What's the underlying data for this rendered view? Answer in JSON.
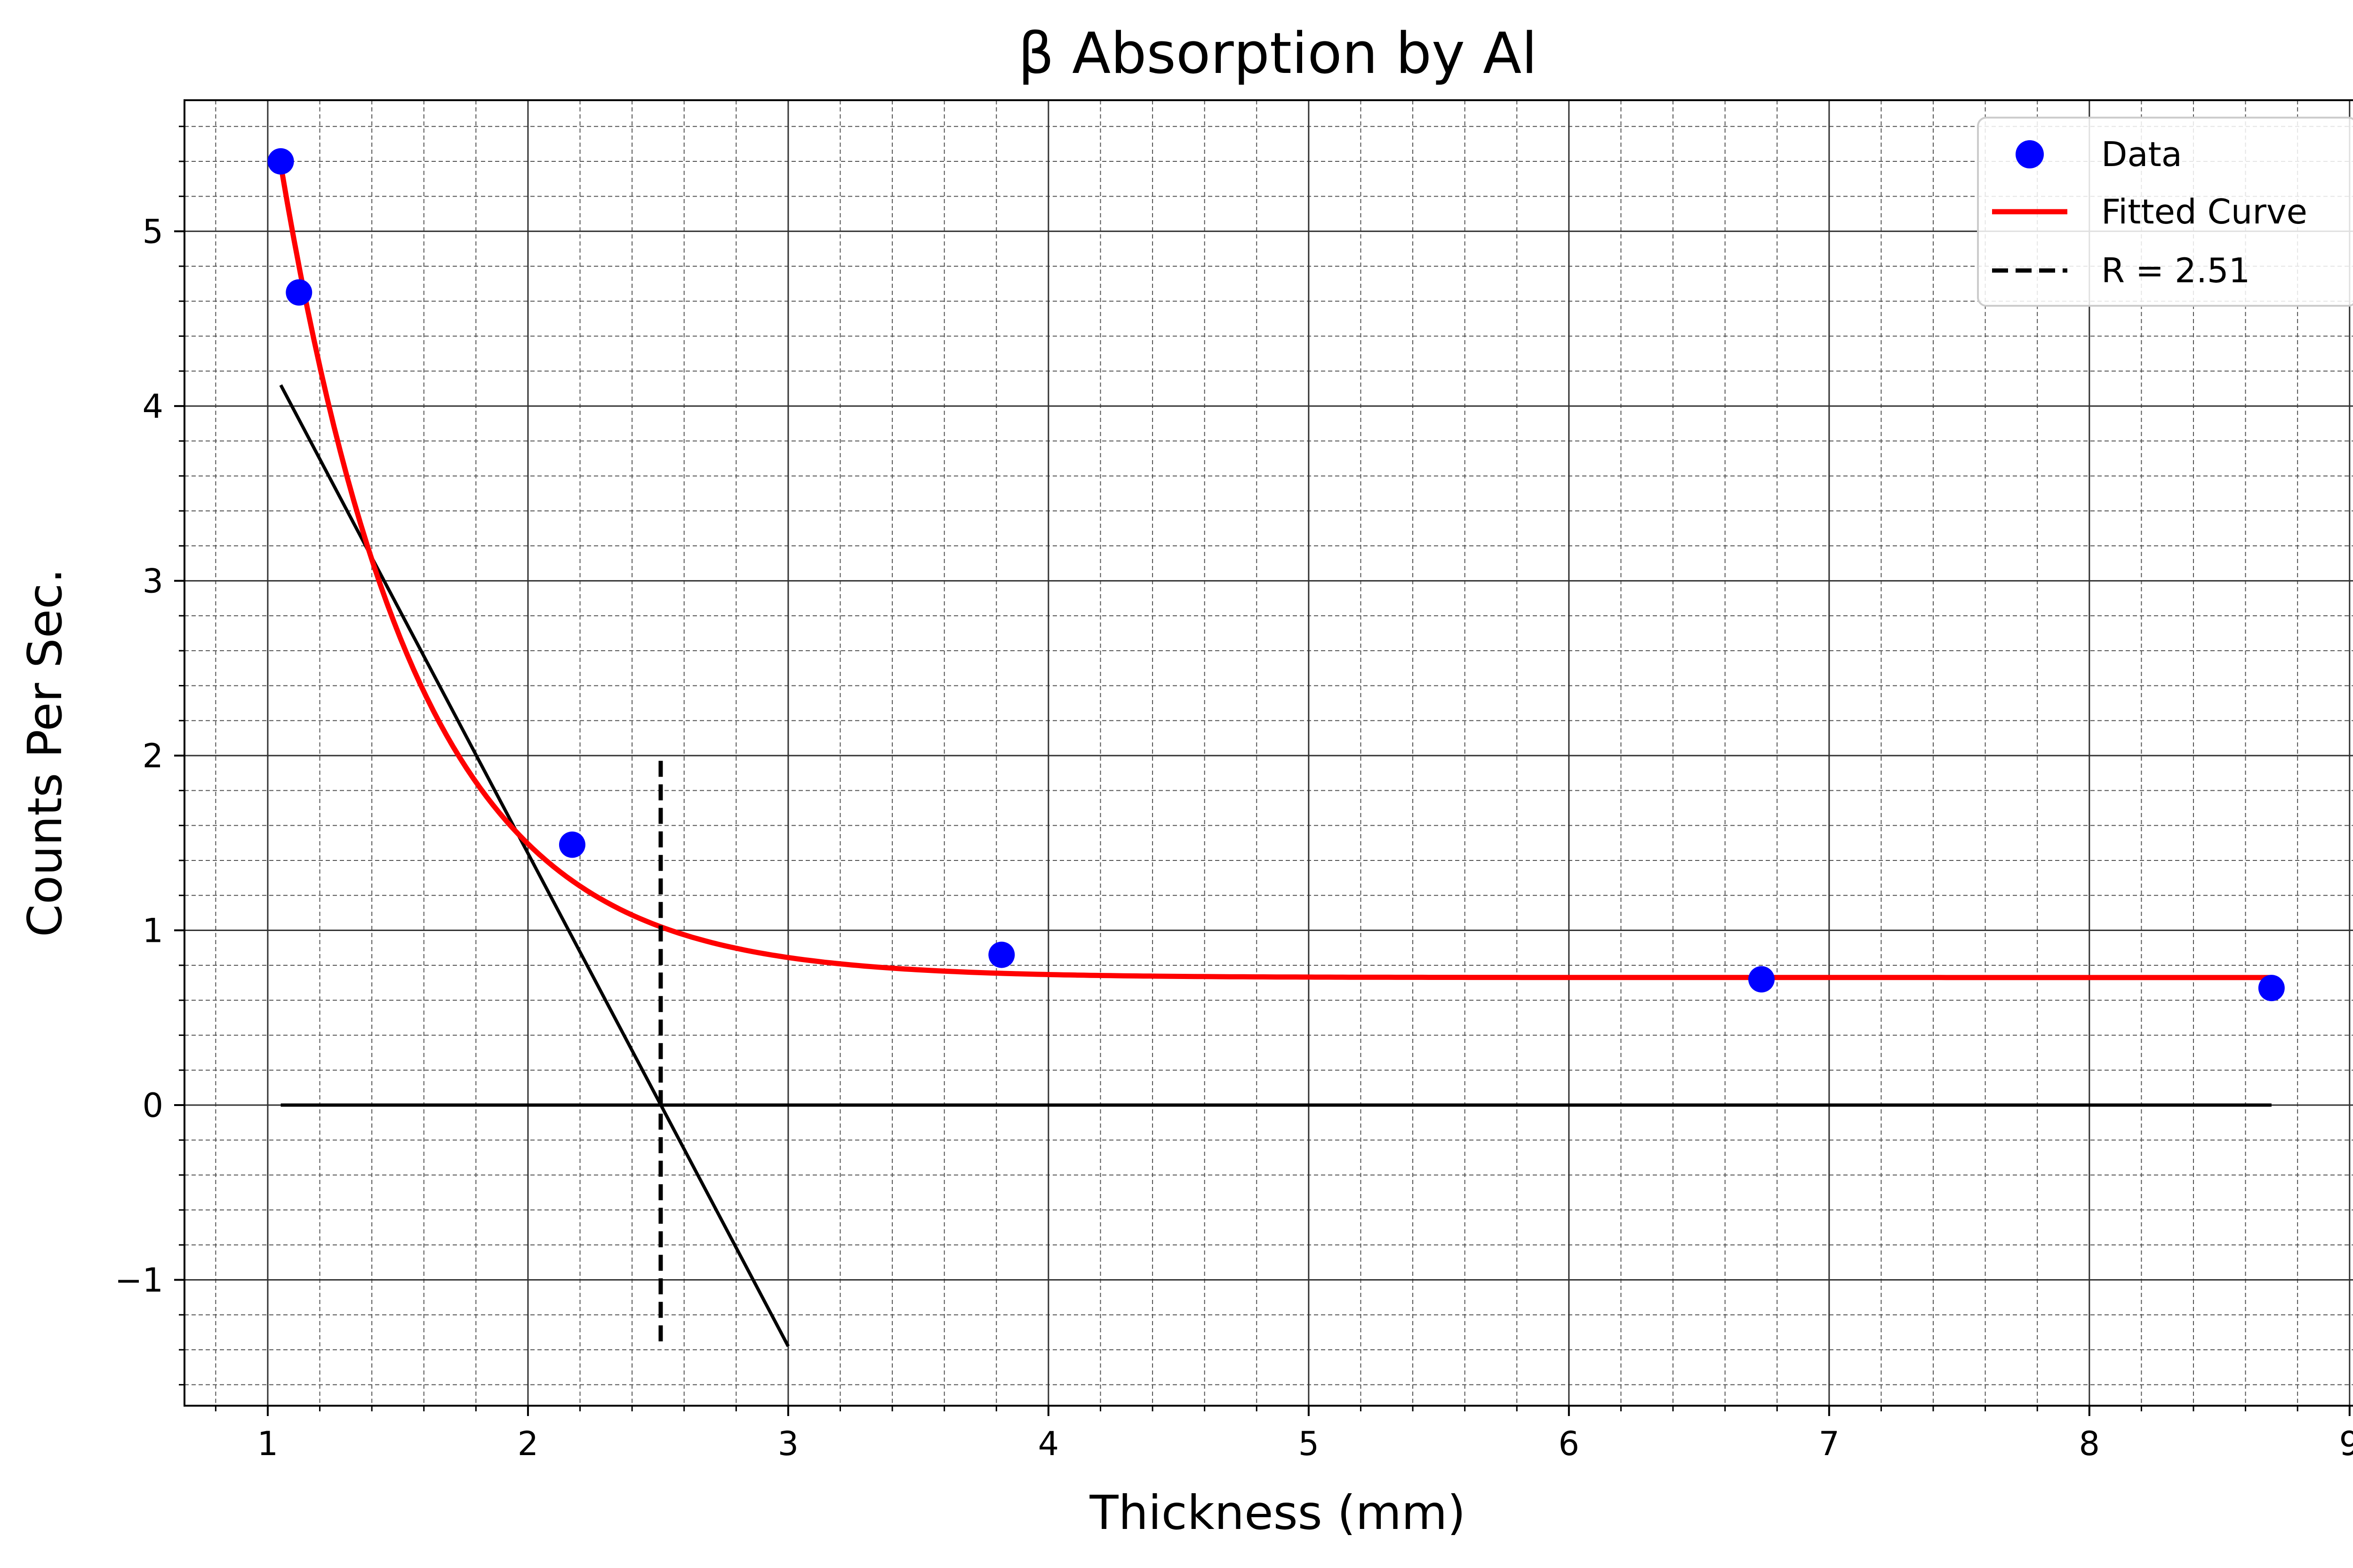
{
  "chart_data": {
    "type": "scatter",
    "title": "β Absorption by Al",
    "xlabel": "Thickness (mm)",
    "ylabel": "Counts Per Sec.",
    "xlim": [
      0.68,
      9.08
    ],
    "ylim": [
      -1.72,
      5.75
    ],
    "grid": "major solid, minor dashed",
    "legend_position": "top-right",
    "x_ticks": [
      "1",
      "2",
      "3",
      "4",
      "5",
      "6",
      "7",
      "8",
      "9"
    ],
    "y_ticks": [
      "−1",
      "0",
      "1",
      "2",
      "3",
      "4",
      "5"
    ],
    "series": [
      {
        "name": "Data",
        "kind": "points",
        "color": "#0000ff",
        "x": [
          1.05,
          1.12,
          2.17,
          3.82,
          6.74,
          8.7
        ],
        "y": [
          5.4,
          4.65,
          1.49,
          0.86,
          0.72,
          0.67
        ]
      },
      {
        "name": "Fitted Curve",
        "kind": "curve",
        "color": "#ff0000",
        "model": "y = a·exp(−b·(x − 1.05)) + c",
        "a": 4.65,
        "b": 1.9,
        "c": 0.73,
        "x_range": [
          1.05,
          8.7
        ]
      },
      {
        "name": "R = 2.51",
        "kind": "vertical-dashed",
        "color": "#000000",
        "x": 2.51,
        "y_range": [
          -1.38,
          1.97
        ]
      }
    ],
    "annotations": [
      {
        "kind": "tangent-line",
        "color": "#000000",
        "x": [
          1.05,
          3.0
        ],
        "y": [
          4.12,
          -1.38
        ]
      },
      {
        "kind": "zero-line",
        "color": "#000000",
        "x": [
          1.05,
          8.7
        ],
        "y": [
          0,
          0
        ]
      }
    ]
  }
}
